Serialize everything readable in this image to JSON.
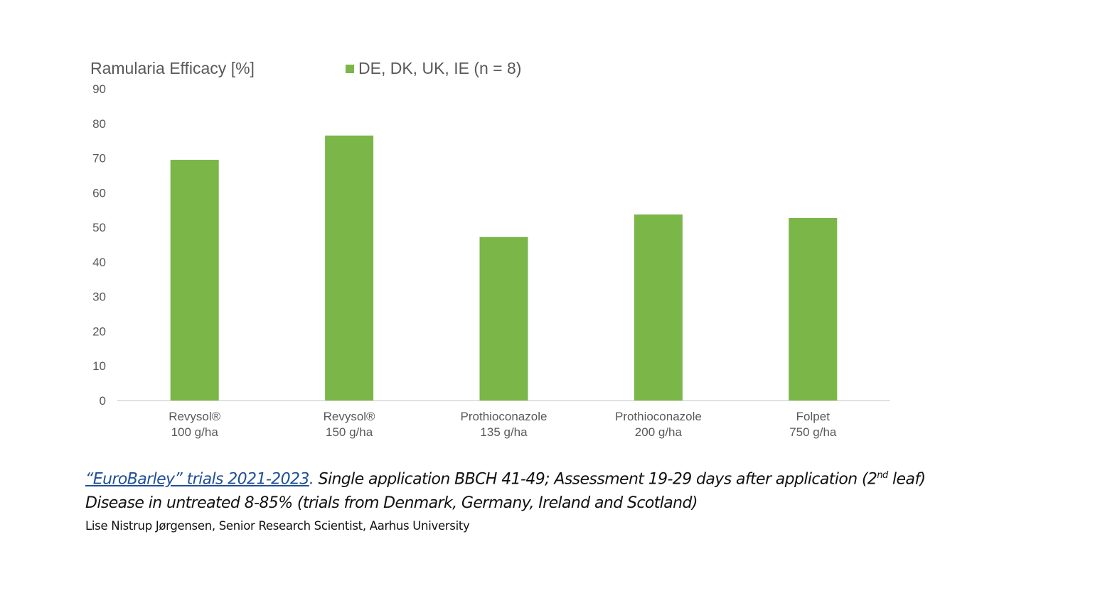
{
  "chart_data": {
    "type": "bar",
    "title": "",
    "ylabel": "Ramularia Efficacy [%]",
    "xlabel": "",
    "ylim": [
      0,
      90
    ],
    "yticks": [
      0,
      10,
      20,
      30,
      40,
      50,
      60,
      70,
      80,
      90
    ],
    "grid": false,
    "legend_position": "top",
    "categories": [
      [
        "Revysol®",
        "100 g/ha"
      ],
      [
        "Revysol®",
        "150 g/ha"
      ],
      [
        "Prothioconazole",
        "135 g/ha"
      ],
      [
        "Prothioconazole",
        "200 g/ha"
      ],
      [
        "Folpet",
        "750 g/ha"
      ]
    ],
    "series": [
      {
        "name": "DE, DK, UK, IE (n = 8)",
        "color": "#7ab648",
        "values": [
          69.5,
          76.5,
          47.2,
          53.7,
          52.7
        ]
      }
    ]
  },
  "caption": {
    "link": "“EuroBarley” trials 2021-2023",
    "line1_rest": " Single application BBCH 41-49; Assessment 19-29 days after application (2",
    "sup": "nd",
    "line1_end": " leaf)",
    "line2": "Disease in untreated 8-85% (trials from Denmark, Germany, Ireland and Scotland)",
    "credit": "Lise Nistrup Jørgensen, Senior Research Scientist, Aarhus University"
  }
}
